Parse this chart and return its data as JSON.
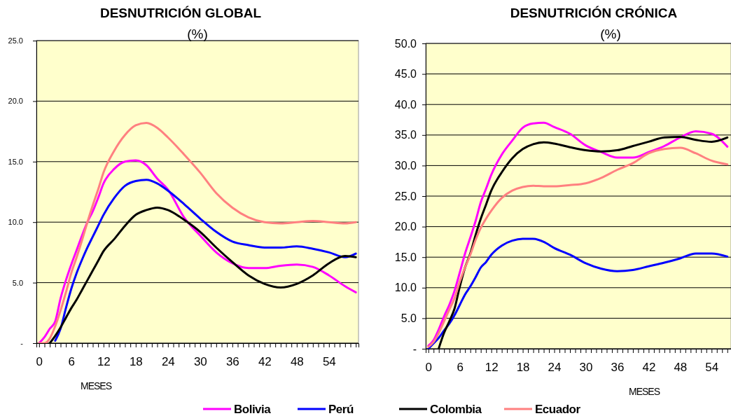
{
  "chart_data": [
    {
      "type": "line",
      "title": "DESNUTRICIÓN GLOBAL",
      "subtitle": "(%)",
      "xlabel": "MESES",
      "grid": "y",
      "legend": "bottom",
      "line_style": "solid",
      "marker": "none",
      "xlim": [
        -0.5,
        59.5
      ],
      "xticks": [
        {
          "value": 0,
          "label": "0"
        },
        {
          "value": 1,
          "label": null
        },
        {
          "value": 2,
          "label": null
        },
        {
          "value": 3,
          "label": null
        },
        {
          "value": 4,
          "label": null
        },
        {
          "value": 5,
          "label": null
        },
        {
          "value": 6,
          "label": "6"
        },
        {
          "value": 7,
          "label": null
        },
        {
          "value": 8,
          "label": null
        },
        {
          "value": 9,
          "label": null
        },
        {
          "value": 10,
          "label": null
        },
        {
          "value": 11,
          "label": null
        },
        {
          "value": 12,
          "label": "12"
        },
        {
          "value": 13,
          "label": null
        },
        {
          "value": 14,
          "label": null
        },
        {
          "value": 15,
          "label": null
        },
        {
          "value": 16,
          "label": null
        },
        {
          "value": 17,
          "label": null
        },
        {
          "value": 18,
          "label": "18"
        },
        {
          "value": 19,
          "label": null
        },
        {
          "value": 20,
          "label": null
        },
        {
          "value": 21,
          "label": null
        },
        {
          "value": 22,
          "label": null
        },
        {
          "value": 23,
          "label": null
        },
        {
          "value": 24,
          "label": "24"
        },
        {
          "value": 25,
          "label": null
        },
        {
          "value": 26,
          "label": null
        },
        {
          "value": 27,
          "label": null
        },
        {
          "value": 28,
          "label": null
        },
        {
          "value": 29,
          "label": null
        },
        {
          "value": 30,
          "label": "30"
        },
        {
          "value": 31,
          "label": null
        },
        {
          "value": 32,
          "label": null
        },
        {
          "value": 33,
          "label": null
        },
        {
          "value": 34,
          "label": null
        },
        {
          "value": 35,
          "label": null
        },
        {
          "value": 36,
          "label": "36"
        },
        {
          "value": 37,
          "label": null
        },
        {
          "value": 38,
          "label": null
        },
        {
          "value": 39,
          "label": null
        },
        {
          "value": 40,
          "label": null
        },
        {
          "value": 41,
          "label": null
        },
        {
          "value": 42,
          "label": "42"
        },
        {
          "value": 43,
          "label": null
        },
        {
          "value": 44,
          "label": null
        },
        {
          "value": 45,
          "label": null
        },
        {
          "value": 46,
          "label": null
        },
        {
          "value": 47,
          "label": null
        },
        {
          "value": 48,
          "label": "48"
        },
        {
          "value": 49,
          "label": null
        },
        {
          "value": 50,
          "label": null
        },
        {
          "value": 51,
          "label": null
        },
        {
          "value": 52,
          "label": null
        },
        {
          "value": 53,
          "label": null
        },
        {
          "value": 54,
          "label": "54"
        },
        {
          "value": 55,
          "label": null
        },
        {
          "value": 56,
          "label": null
        },
        {
          "value": 57,
          "label": null
        },
        {
          "value": 58,
          "label": null
        },
        {
          "value": 59,
          "label": null
        }
      ],
      "ylim": [
        0,
        25
      ],
      "yticks": [
        {
          "value": 0,
          "label": "-"
        },
        {
          "value": 5,
          "label": "5.0"
        },
        {
          "value": 10,
          "label": "10.0"
        },
        {
          "value": 15,
          "label": "15.0"
        },
        {
          "value": 20,
          "label": "20.0"
        },
        {
          "value": 25,
          "label": "25.0"
        }
      ],
      "x": [
        0,
        1,
        2,
        3,
        4,
        5,
        6,
        7,
        8,
        9,
        10,
        11,
        12,
        14,
        16,
        18,
        20,
        22,
        24,
        27,
        30,
        33,
        36,
        39,
        42,
        45,
        48,
        51,
        54,
        57,
        59
      ],
      "series": [
        {
          "name": "Bolivia",
          "color": "#ff00ff",
          "values": [
            0,
            0.5,
            1.2,
            1.8,
            3.7,
            5.2,
            6.5,
            7.7,
            8.9,
            10.0,
            10.9,
            12.0,
            13.2,
            14.4,
            15.0,
            15.1,
            14.7,
            13.6,
            12.7,
            10.4,
            8.9,
            7.5,
            6.6,
            6.2,
            6.2,
            6.4,
            6.5,
            6.3,
            5.6,
            4.7,
            4.2
          ]
        },
        {
          "name": "Perú",
          "color": "#0000ff",
          "values": [
            null,
            null,
            null,
            0.2,
            1.2,
            2.9,
            4.5,
            5.8,
            6.9,
            7.9,
            8.8,
            9.7,
            10.6,
            12.0,
            13.0,
            13.4,
            13.5,
            13.2,
            12.6,
            11.5,
            10.3,
            9.2,
            8.4,
            8.1,
            7.9,
            7.9,
            8.0,
            7.8,
            7.5,
            7.1,
            7.4
          ]
        },
        {
          "color": "#000000",
          "values": [
            null,
            null,
            0,
            0.6,
            1.3,
            2.1,
            2.9,
            3.6,
            4.4,
            5.2,
            6.0,
            6.8,
            7.6,
            8.6,
            9.7,
            10.6,
            11.0,
            11.2,
            11.0,
            10.2,
            9.2,
            7.9,
            6.7,
            5.6,
            4.9,
            4.6,
            4.9,
            5.6,
            6.6,
            7.2,
            7.1
          ]
        },
        {
          "color": "#ff8080",
          "values": [
            0,
            0,
            0.4,
            1.4,
            2.7,
            4.2,
            5.8,
            7.1,
            8.5,
            10.0,
            11.4,
            12.7,
            14.1,
            15.9,
            17.2,
            18.0,
            18.2,
            17.8,
            17.0,
            15.6,
            14.1,
            12.4,
            11.2,
            10.4,
            10.0,
            9.9,
            10.0,
            10.1,
            10.0,
            9.9,
            10.0
          ]
        }
      ]
    },
    {
      "type": "line",
      "title": "DESNUTRICIÓN CRÓNICA",
      "subtitle": "(%)",
      "xlabel": "MESES",
      "grid": "y",
      "legend": "bottom",
      "line_style": "solid",
      "marker": "none",
      "xlim": [
        -0.5,
        57.7
      ],
      "xticks": [
        {
          "value": 0,
          "label": "0"
        },
        {
          "value": 1,
          "label": null
        },
        {
          "value": 2,
          "label": null
        },
        {
          "value": 3,
          "label": null
        },
        {
          "value": 4,
          "label": null
        },
        {
          "value": 5,
          "label": null
        },
        {
          "value": 6,
          "label": "6"
        },
        {
          "value": 7,
          "label": null
        },
        {
          "value": 8,
          "label": null
        },
        {
          "value": 9,
          "label": null
        },
        {
          "value": 10,
          "label": null
        },
        {
          "value": 11,
          "label": null
        },
        {
          "value": 12,
          "label": "12"
        },
        {
          "value": 13,
          "label": null
        },
        {
          "value": 14,
          "label": null
        },
        {
          "value": 15,
          "label": null
        },
        {
          "value": 16,
          "label": null
        },
        {
          "value": 17,
          "label": null
        },
        {
          "value": 18,
          "label": "18"
        },
        {
          "value": 19,
          "label": null
        },
        {
          "value": 20,
          "label": null
        },
        {
          "value": 21,
          "label": null
        },
        {
          "value": 22,
          "label": null
        },
        {
          "value": 23,
          "label": null
        },
        {
          "value": 24,
          "label": "24"
        },
        {
          "value": 25,
          "label": null
        },
        {
          "value": 26,
          "label": null
        },
        {
          "value": 27,
          "label": null
        },
        {
          "value": 28,
          "label": null
        },
        {
          "value": 29,
          "label": null
        },
        {
          "value": 30,
          "label": "30"
        },
        {
          "value": 31,
          "label": null
        },
        {
          "value": 32,
          "label": null
        },
        {
          "value": 33,
          "label": null
        },
        {
          "value": 34,
          "label": null
        },
        {
          "value": 35,
          "label": null
        },
        {
          "value": 36,
          "label": "36"
        },
        {
          "value": 37,
          "label": null
        },
        {
          "value": 38,
          "label": null
        },
        {
          "value": 39,
          "label": null
        },
        {
          "value": 40,
          "label": null
        },
        {
          "value": 41,
          "label": null
        },
        {
          "value": 42,
          "label": "42"
        },
        {
          "value": 43,
          "label": null
        },
        {
          "value": 44,
          "label": null
        },
        {
          "value": 45,
          "label": null
        },
        {
          "value": 46,
          "label": null
        },
        {
          "value": 47,
          "label": null
        },
        {
          "value": 48,
          "label": "48"
        },
        {
          "value": 49,
          "label": null
        },
        {
          "value": 50,
          "label": null
        },
        {
          "value": 51,
          "label": null
        },
        {
          "value": 52,
          "label": null
        },
        {
          "value": 53,
          "label": null
        },
        {
          "value": 54,
          "label": "54"
        },
        {
          "value": 55,
          "label": null
        },
        {
          "value": 56,
          "label": null
        },
        {
          "value": 57,
          "label": null
        }
      ],
      "ylim": [
        0,
        50
      ],
      "yticks": [
        {
          "value": 0,
          "label": "-"
        },
        {
          "value": 5,
          "label": "5.0"
        },
        {
          "value": 10,
          "label": "10.0"
        },
        {
          "value": 15,
          "label": "15.0"
        },
        {
          "value": 20,
          "label": "20.0"
        },
        {
          "value": 25,
          "label": "25.0"
        },
        {
          "value": 30,
          "label": "30.0"
        },
        {
          "value": 35,
          "label": "35.0"
        },
        {
          "value": 40,
          "label": "40.0"
        },
        {
          "value": 45,
          "label": "45.0"
        },
        {
          "value": 50,
          "label": "50.0"
        }
      ],
      "x": [
        0,
        1,
        2,
        3,
        4,
        5,
        6,
        7,
        8,
        9,
        10,
        11,
        12,
        14,
        16,
        18,
        20,
        22,
        24,
        27,
        30,
        33,
        36,
        39,
        42,
        45,
        48,
        51,
        54,
        57
      ],
      "series": [
        {
          "color": "#ff00ff",
          "values": [
            0.5,
            1.4,
            3.2,
            5.3,
            7.2,
            9.5,
            12.5,
            15.6,
            18.2,
            20.9,
            24.0,
            26.2,
            28.5,
            31.8,
            34.1,
            36.2,
            36.9,
            37.0,
            36.3,
            35.2,
            33.3,
            32.2,
            31.3,
            31.3,
            32.2,
            33.2,
            34.6,
            35.6,
            35.2,
            33.1
          ]
        },
        {
          "color": "#0000ff",
          "values": [
            0,
            0.9,
            1.8,
            3.0,
            4.1,
            5.5,
            7.2,
            8.9,
            10.2,
            11.7,
            13.3,
            14.2,
            15.4,
            16.9,
            17.7,
            18.0,
            18.0,
            17.5,
            16.5,
            15.4,
            14.0,
            13.1,
            12.7,
            12.9,
            13.5,
            14.1,
            14.8,
            15.6,
            15.6,
            15.1
          ]
        },
        {
          "name": "Colombia",
          "color": "#000000",
          "values": [
            null,
            null,
            0.1,
            2.6,
            4.5,
            6.6,
            10.2,
            13.3,
            15.6,
            18.6,
            21.3,
            23.6,
            25.9,
            28.9,
            31.2,
            32.7,
            33.5,
            33.8,
            33.6,
            33.0,
            32.5,
            32.3,
            32.5,
            33.2,
            33.9,
            34.6,
            34.7,
            34.2,
            33.9,
            34.6
          ]
        },
        {
          "name": "Ecuador",
          "color": "#ff8080",
          "values": [
            0.3,
            1.1,
            2.6,
            4.5,
            6.4,
            8.3,
            11.0,
            13.3,
            15.4,
            17.8,
            19.8,
            21.3,
            22.6,
            24.7,
            25.9,
            26.5,
            26.7,
            26.6,
            26.6,
            26.8,
            27.1,
            28.0,
            29.3,
            30.4,
            32.0,
            32.7,
            32.9,
            32.0,
            30.8,
            30.2
          ]
        }
      ]
    }
  ]
}
